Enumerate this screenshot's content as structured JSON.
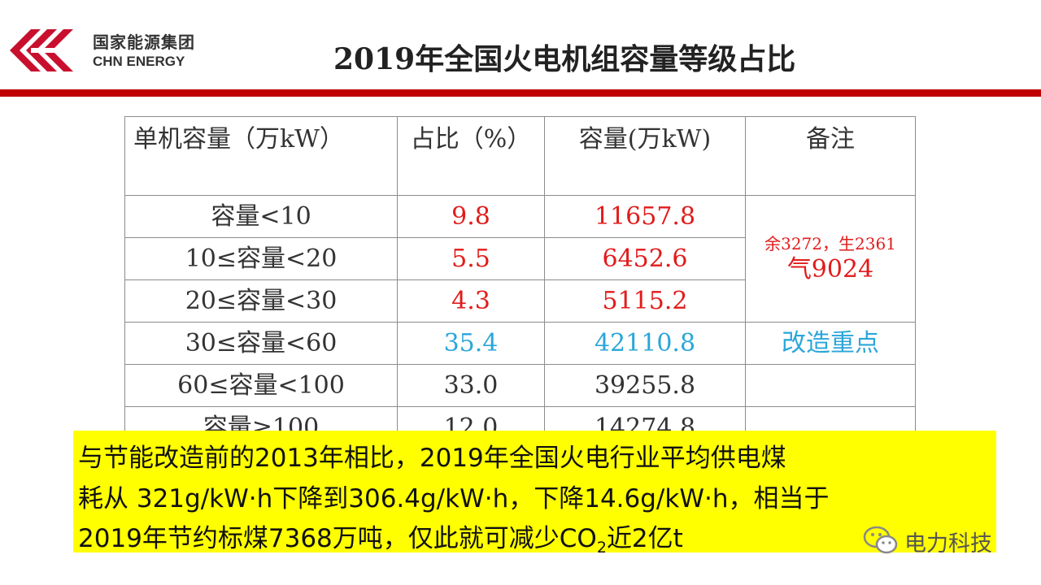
{
  "header": {
    "logo_cn": "国家能源集团",
    "logo_en": "CHN ENERGY",
    "title": "2019年全国火电机组容量等级占比"
  },
  "colors": {
    "brand_red": "#c00000",
    "value_red": "#e21b1b",
    "value_blue": "#2aa6da",
    "highlight": "#ffff00"
  },
  "table": {
    "headers": [
      "单机容量（万kW）",
      "占比（%）",
      "容量(万kW)",
      "备注"
    ],
    "rows": [
      {
        "range": "容量<10",
        "share": "9.8",
        "capacity": "11657.8",
        "color": "red"
      },
      {
        "range": "10≤容量<20",
        "share": "5.5",
        "capacity": "6452.6",
        "color": "red"
      },
      {
        "range": "20≤容量<30",
        "share": "4.3",
        "capacity": "5115.2",
        "color": "red"
      },
      {
        "range": "30≤容量<60",
        "share": "35.4",
        "capacity": "42110.8",
        "color": "blue"
      },
      {
        "range": "60≤容量<100",
        "share": "33.0",
        "capacity": "39255.8",
        "color": "default"
      },
      {
        "range": "容量≥100",
        "share": "12.0",
        "capacity": "14274.8",
        "color": "default"
      }
    ],
    "note_group_1_line1": "余3272，生2361",
    "note_group_1_line2": "气9024",
    "note_row_4": "改造重点"
  },
  "highlight_box": {
    "line1": "与节能改造前的2013年相比，2019年全国火电行业平均供电煤",
    "line2": "耗从 321g/kW·h下降到306.4g/kW·h，下降14.6g/kW·h，相当于",
    "line3_prefix": "2019年节约标煤7368万吨，仅此就可减少CO",
    "line3_sub": "2",
    "line3_suffix": "近2亿t"
  },
  "watermark": {
    "text": "电力科技",
    "icon": "wechat-icon"
  }
}
